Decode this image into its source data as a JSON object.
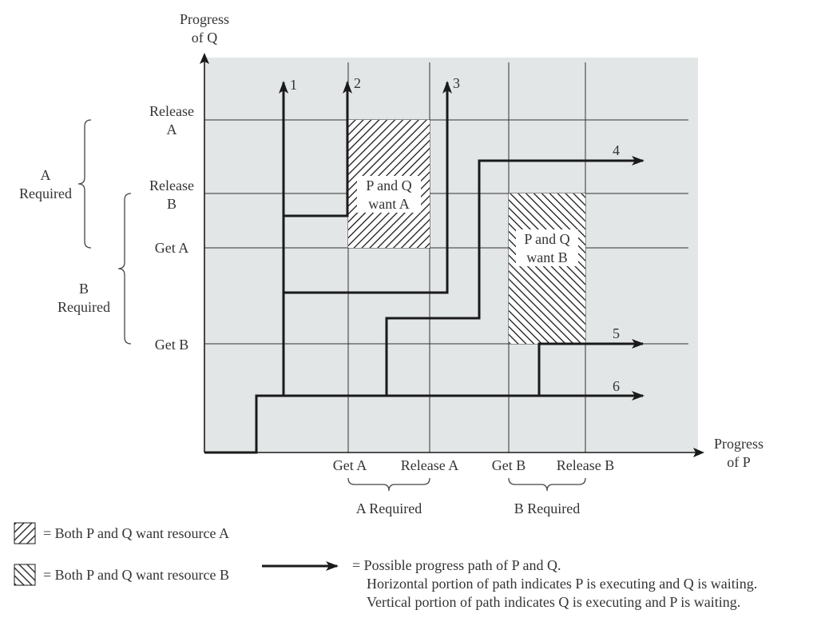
{
  "axes": {
    "y_label_line1": "Progress",
    "y_label_line2": "of Q",
    "x_label_line1": "Progress",
    "x_label_line2": "of P"
  },
  "y_ticks": {
    "release_a_1": "Release",
    "release_a_2": "A",
    "release_b_1": "Release",
    "release_b_2": "B",
    "get_a": "Get A",
    "get_b": "Get B"
  },
  "x_ticks": {
    "get_a": "Get A",
    "release_a": "Release A",
    "get_b": "Get B",
    "release_b": "Release B"
  },
  "ranges": {
    "a_required_y_1": "A",
    "a_required_y_2": "Required",
    "b_required_y_1": "B",
    "b_required_y_2": "Required",
    "a_required_x": "A Required",
    "b_required_x": "B Required"
  },
  "regions": {
    "a_line1": "P and Q",
    "a_line2": "want A",
    "b_line1": "P and Q",
    "b_line2": "want B"
  },
  "paths": {
    "p1": "1",
    "p2": "2",
    "p3": "3",
    "p4": "4",
    "p5": "5",
    "p6": "6"
  },
  "legend": {
    "resource_a": "= Both P and Q want resource A",
    "resource_b": "= Both P and Q want resource B",
    "path_line1": "= Possible progress path of P and Q.",
    "path_line2": "Horizontal portion of path indicates P is executing and Q is waiting.",
    "path_line3": "Vertical portion of path indicates Q is executing and P is waiting."
  },
  "colors": {
    "plot_background": "#e3e6e6",
    "path": "#1a1a1a",
    "hatch": "#1a1a1a"
  }
}
